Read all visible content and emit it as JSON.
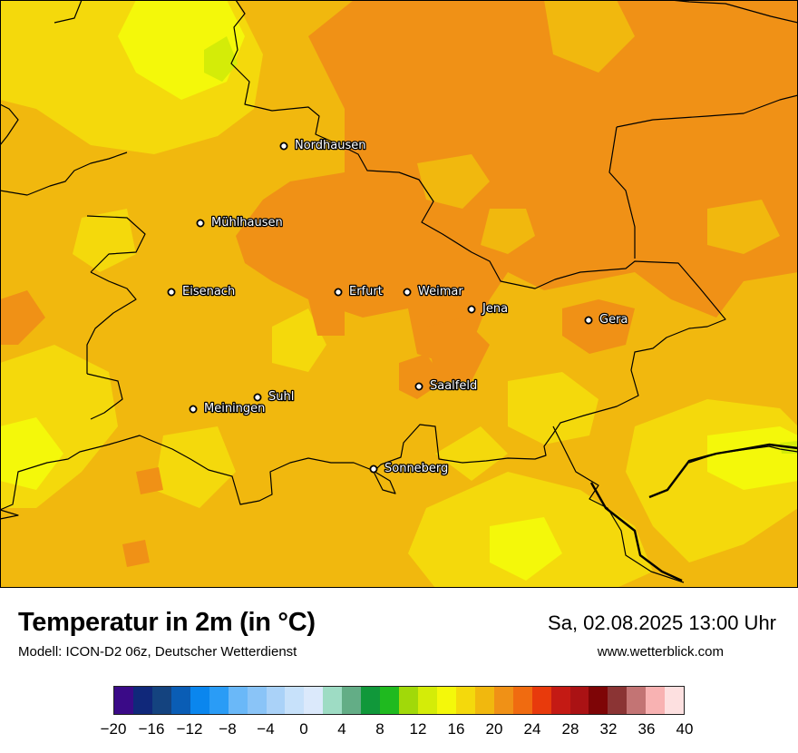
{
  "map": {
    "background_color": "#f1b80e",
    "border_color": "#000000",
    "cities": [
      {
        "name": "Nordhausen",
        "id": "nordhausen"
      },
      {
        "name": "Mühlhausen",
        "id": "muehlhausen"
      },
      {
        "name": "Eisenach",
        "id": "eisenach"
      },
      {
        "name": "Erfurt",
        "id": "erfurt"
      },
      {
        "name": "Weimar",
        "id": "weimar"
      },
      {
        "name": "Jena",
        "id": "jena"
      },
      {
        "name": "Gera",
        "id": "gera"
      },
      {
        "name": "Suhl",
        "id": "suhl"
      },
      {
        "name": "Meiningen",
        "id": "meiningen"
      },
      {
        "name": "Saalfeld",
        "id": "saalfeld"
      },
      {
        "name": "Sonneberg",
        "id": "sonneberg"
      }
    ]
  },
  "header": {
    "title": "Temperatur in 2m (in °C)",
    "model": "Modell: ICON-D2 06z, Deutscher Wetterdienst",
    "datetime": "Sa, 02.08.2025 13:00 Uhr",
    "website": "www.wetterblick.com"
  },
  "legend": {
    "unit": "°C",
    "min": -20,
    "max": 40,
    "step": 2,
    "colors": [
      "#3a0a87",
      "#10287a",
      "#14437f",
      "#0a5db5",
      "#0a86ee",
      "#2a9cf6",
      "#6ab8f8",
      "#8ac4f7",
      "#aad2f8",
      "#c7e1fa",
      "#dbe9fb",
      "#9edcc4",
      "#63ad86",
      "#10983a",
      "#1fba1f",
      "#a1d909",
      "#d4ec08",
      "#f4f80a",
      "#f4d90c",
      "#f1b80e",
      "#f09116",
      "#f06b10",
      "#e83a0c",
      "#c41a14",
      "#aa1214",
      "#7e0506",
      "#8b3434",
      "#c37474",
      "#f8b2b2",
      "#fde0e0"
    ],
    "tick_labels": [
      "−20",
      "−16",
      "−12",
      "−8",
      "−4",
      "0",
      "4",
      "8",
      "12",
      "16",
      "20",
      "24",
      "28",
      "32",
      "36",
      "40"
    ]
  }
}
